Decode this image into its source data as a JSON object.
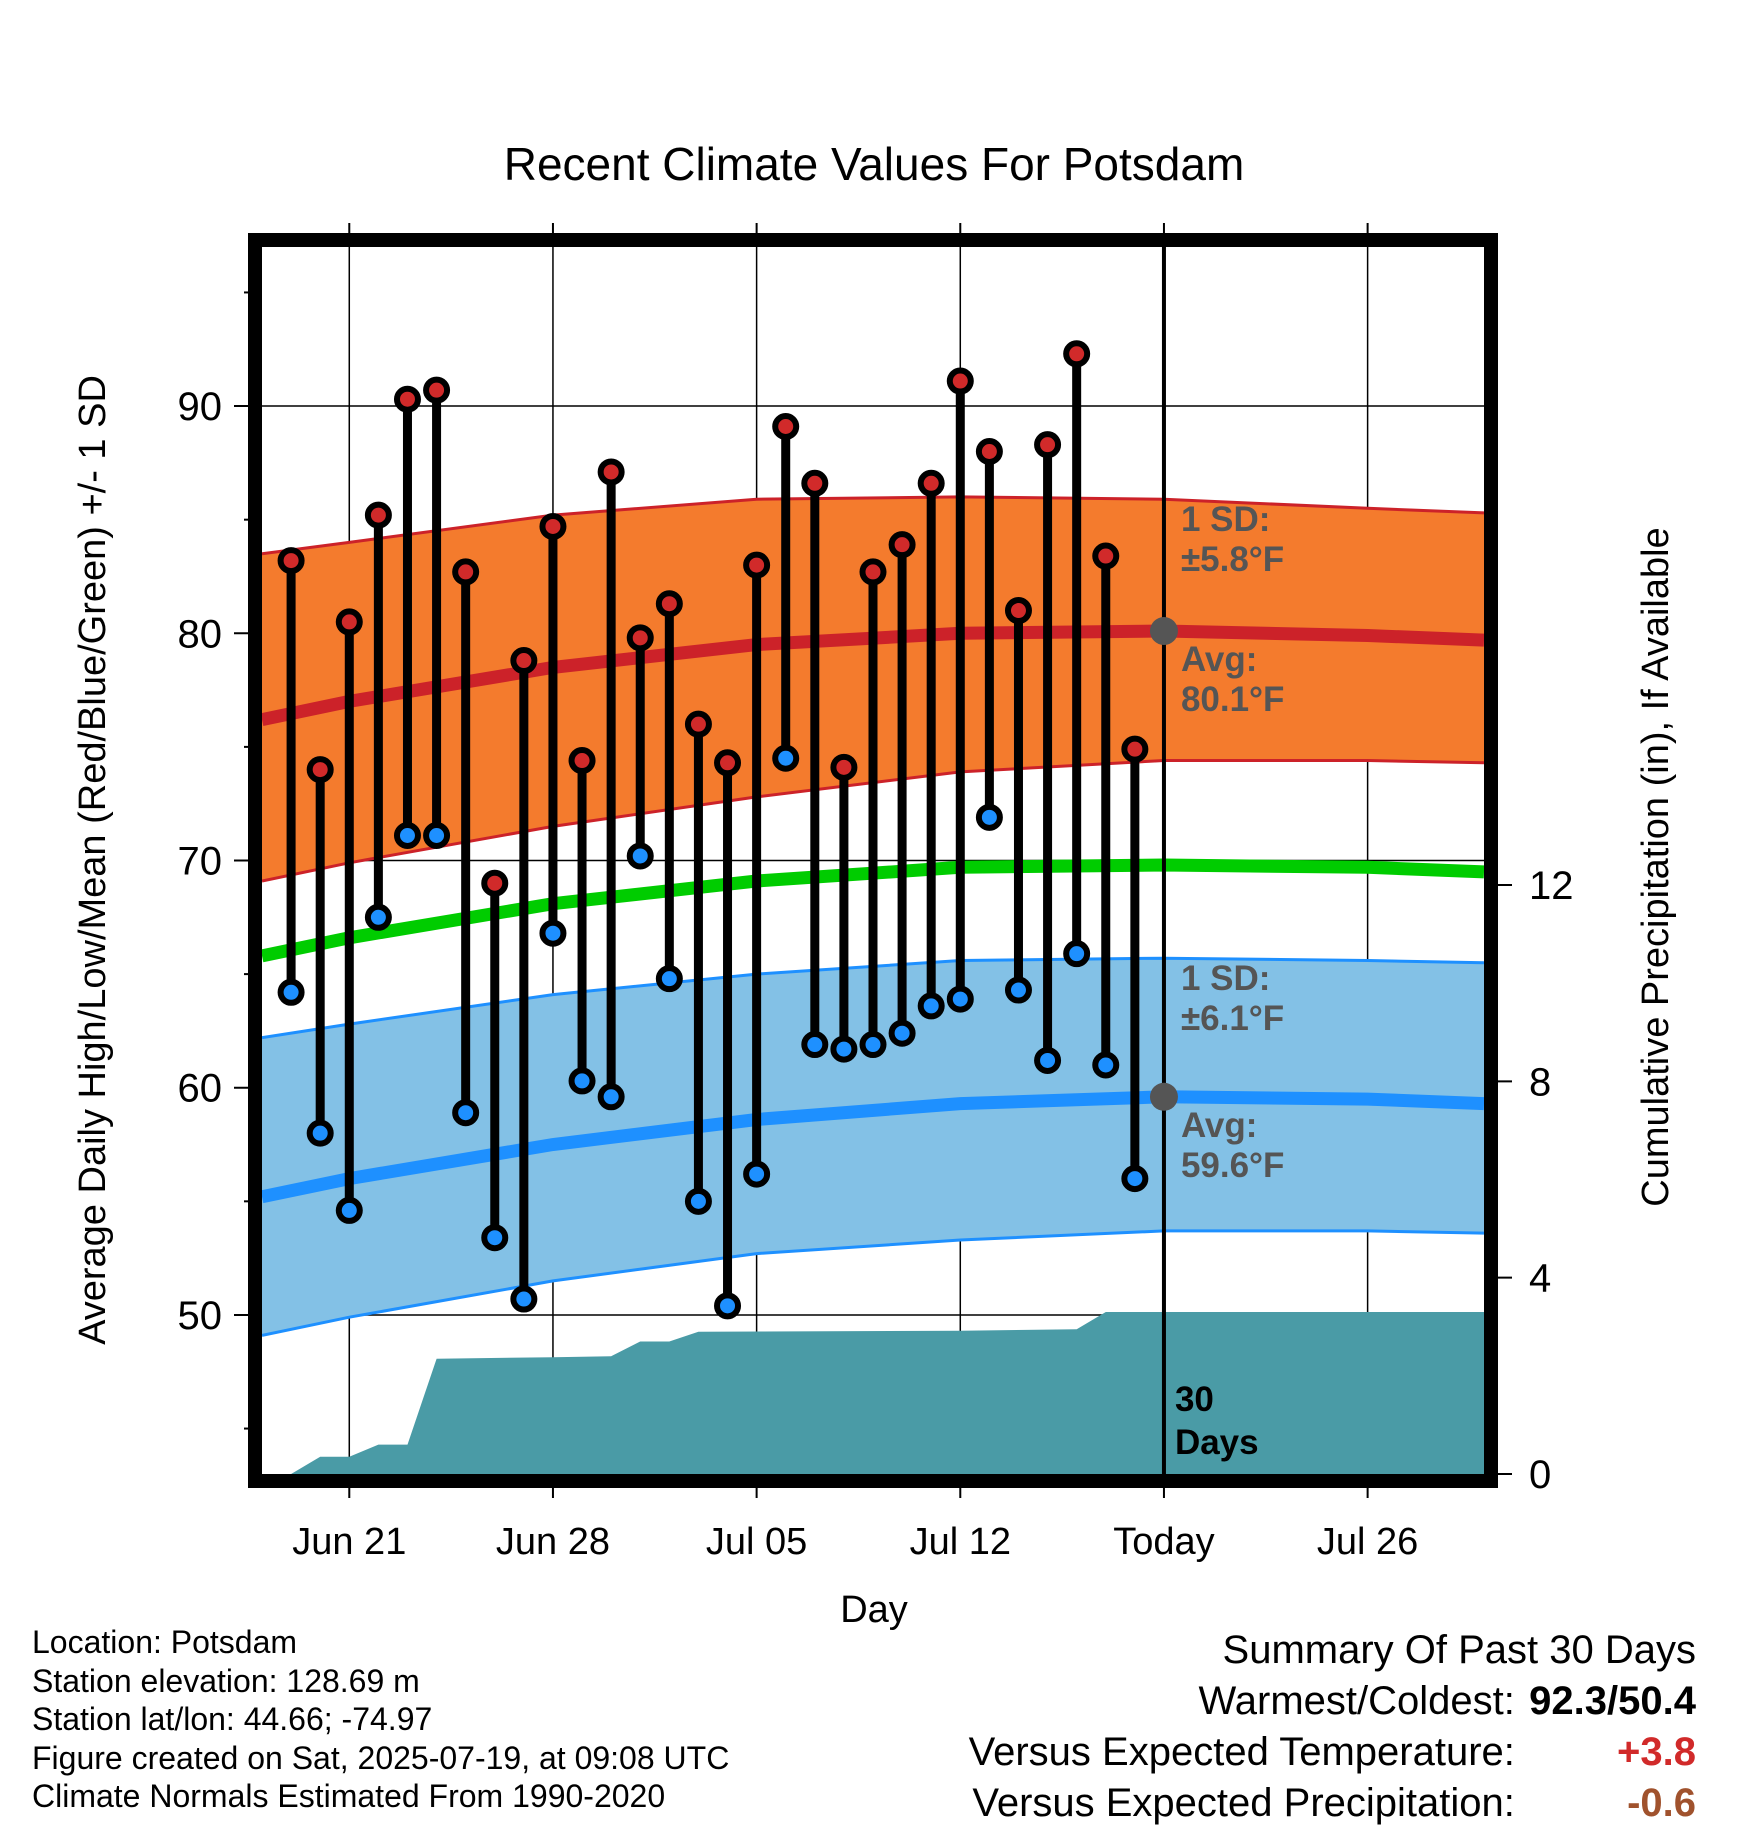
{
  "colors": {
    "high_marker": "#d12a2a",
    "low_marker": "#1e90ff",
    "high_band": "#f47b2d",
    "high_avg_line": "#cc2229",
    "low_band": "#83c1e6",
    "low_avg_line": "#1e90ff",
    "mean_line": "#00cc00",
    "precip_fill": "#4a9ba6",
    "annotation_text": "#555555",
    "today_marker": "#555555",
    "temp_anomaly": "#d12a2a",
    "precip_anomaly": "#a0522d"
  },
  "chart_data": {
    "type": "line",
    "title": "Recent Climate Values For Potsdam",
    "xlabel": "Day",
    "ylabel": "Average Daily High/Low/Mean (Red/Blue/Green) +/- 1 SD",
    "y2label": "Cumulative Precipitation (in), If Available",
    "xlim": [
      "2025-06-18",
      "2025-07-30"
    ],
    "ylim": [
      43,
      97
    ],
    "y2lim": [
      0,
      25
    ],
    "grid": true,
    "x_ticks": [
      {
        "date": "2025-06-21",
        "label": "Jun 21"
      },
      {
        "date": "2025-06-28",
        "label": "Jun 28"
      },
      {
        "date": "2025-07-05",
        "label": "Jul 05"
      },
      {
        "date": "2025-07-12",
        "label": "Jul 12"
      },
      {
        "date": "2025-07-19",
        "label": "Today"
      },
      {
        "date": "2025-07-26",
        "label": "Jul 26"
      }
    ],
    "y_ticks": [
      50,
      60,
      70,
      80,
      90
    ],
    "y2_ticks": [
      0,
      4,
      8,
      12
    ],
    "today": "2025-07-19",
    "observed": [
      {
        "date": "2025-06-19",
        "high": 83.2,
        "low": 64.2
      },
      {
        "date": "2025-06-20",
        "high": 74.0,
        "low": 58.0
      },
      {
        "date": "2025-06-21",
        "high": 80.5,
        "low": 54.6
      },
      {
        "date": "2025-06-22",
        "high": 85.2,
        "low": 67.5
      },
      {
        "date": "2025-06-23",
        "high": 90.3,
        "low": 71.1
      },
      {
        "date": "2025-06-24",
        "high": 90.7,
        "low": 71.1
      },
      {
        "date": "2025-06-25",
        "high": 82.7,
        "low": 58.9
      },
      {
        "date": "2025-06-26",
        "high": 69.0,
        "low": 53.4
      },
      {
        "date": "2025-06-27",
        "high": 78.8,
        "low": 50.7
      },
      {
        "date": "2025-06-28",
        "high": 84.7,
        "low": 66.8
      },
      {
        "date": "2025-06-29",
        "high": 74.4,
        "low": 60.3
      },
      {
        "date": "2025-06-30",
        "high": 87.1,
        "low": 59.6
      },
      {
        "date": "2025-07-01",
        "high": 79.8,
        "low": 70.2
      },
      {
        "date": "2025-07-02",
        "high": 81.3,
        "low": 64.8
      },
      {
        "date": "2025-07-03",
        "high": 76.0,
        "low": 55.0
      },
      {
        "date": "2025-07-04",
        "high": 74.3,
        "low": 50.4
      },
      {
        "date": "2025-07-05",
        "high": 83.0,
        "low": 56.2
      },
      {
        "date": "2025-07-06",
        "high": 89.1,
        "low": 74.5
      },
      {
        "date": "2025-07-07",
        "high": 86.6,
        "low": 61.9
      },
      {
        "date": "2025-07-08",
        "high": 74.1,
        "low": 61.7
      },
      {
        "date": "2025-07-09",
        "high": 82.7,
        "low": 61.9
      },
      {
        "date": "2025-07-10",
        "high": 83.9,
        "low": 62.4
      },
      {
        "date": "2025-07-11",
        "high": 86.6,
        "low": 63.6
      },
      {
        "date": "2025-07-12",
        "high": 91.1,
        "low": 63.9
      },
      {
        "date": "2025-07-13",
        "high": 88.0,
        "low": 71.9
      },
      {
        "date": "2025-07-14",
        "high": 81.0,
        "low": 64.3
      },
      {
        "date": "2025-07-15",
        "high": 88.3,
        "low": 61.2
      },
      {
        "date": "2025-07-16",
        "high": 92.3,
        "low": 65.9
      },
      {
        "date": "2025-07-17",
        "high": 83.4,
        "low": 61.0
      },
      {
        "date": "2025-07-18",
        "high": 74.9,
        "low": 56.0
      }
    ],
    "normal_high": [
      {
        "date": "2025-06-18",
        "avg": 76.2,
        "sd_low": 69.1,
        "sd_high": 83.5
      },
      {
        "date": "2025-06-21",
        "avg": 77.0,
        "sd_low": 69.9,
        "sd_high": 84.0
      },
      {
        "date": "2025-06-28",
        "avg": 78.5,
        "sd_low": 71.5,
        "sd_high": 85.2
      },
      {
        "date": "2025-07-05",
        "avg": 79.5,
        "sd_low": 72.8,
        "sd_high": 85.9
      },
      {
        "date": "2025-07-12",
        "avg": 80.0,
        "sd_low": 73.9,
        "sd_high": 86.0
      },
      {
        "date": "2025-07-19",
        "avg": 80.1,
        "sd_low": 74.4,
        "sd_high": 85.9
      },
      {
        "date": "2025-07-26",
        "avg": 79.9,
        "sd_low": 74.4,
        "sd_high": 85.5
      },
      {
        "date": "2025-07-30",
        "avg": 79.7,
        "sd_low": 74.3,
        "sd_high": 85.3
      }
    ],
    "normal_low": [
      {
        "date": "2025-06-18",
        "avg": 55.2,
        "sd_low": 49.1,
        "sd_high": 62.2
      },
      {
        "date": "2025-06-21",
        "avg": 56.0,
        "sd_low": 49.9,
        "sd_high": 62.8
      },
      {
        "date": "2025-06-28",
        "avg": 57.5,
        "sd_low": 51.5,
        "sd_high": 64.1
      },
      {
        "date": "2025-07-05",
        "avg": 58.6,
        "sd_low": 52.7,
        "sd_high": 65.0
      },
      {
        "date": "2025-07-12",
        "avg": 59.3,
        "sd_low": 53.3,
        "sd_high": 65.6
      },
      {
        "date": "2025-07-19",
        "avg": 59.6,
        "sd_low": 53.7,
        "sd_high": 65.7
      },
      {
        "date": "2025-07-26",
        "avg": 59.5,
        "sd_low": 53.7,
        "sd_high": 65.6
      },
      {
        "date": "2025-07-30",
        "avg": 59.3,
        "sd_low": 53.6,
        "sd_high": 65.5
      }
    ],
    "normal_mean": [
      {
        "date": "2025-06-18",
        "value": 65.8
      },
      {
        "date": "2025-06-21",
        "value": 66.6
      },
      {
        "date": "2025-06-28",
        "value": 68.1
      },
      {
        "date": "2025-07-05",
        "value": 69.1
      },
      {
        "date": "2025-07-12",
        "value": 69.7
      },
      {
        "date": "2025-07-19",
        "value": 69.8
      },
      {
        "date": "2025-07-26",
        "value": 69.7
      },
      {
        "date": "2025-07-30",
        "value": 69.5
      }
    ],
    "cumulative_precip": [
      {
        "date": "2025-06-19",
        "value": 0.0
      },
      {
        "date": "2025-06-20",
        "value": 0.35
      },
      {
        "date": "2025-06-21",
        "value": 0.35
      },
      {
        "date": "2025-06-22",
        "value": 0.6
      },
      {
        "date": "2025-06-23",
        "value": 0.6
      },
      {
        "date": "2025-06-24",
        "value": 2.35
      },
      {
        "date": "2025-06-28",
        "value": 2.38
      },
      {
        "date": "2025-06-30",
        "value": 2.4
      },
      {
        "date": "2025-07-01",
        "value": 2.7
      },
      {
        "date": "2025-07-02",
        "value": 2.7
      },
      {
        "date": "2025-07-03",
        "value": 2.9
      },
      {
        "date": "2025-07-12",
        "value": 2.92
      },
      {
        "date": "2025-07-16",
        "value": 2.95
      },
      {
        "date": "2025-07-17",
        "value": 3.3
      },
      {
        "date": "2025-07-30",
        "value": 3.3
      }
    ]
  },
  "annotations": {
    "high_sd_label": "1 SD:",
    "high_sd_value": "±5.8°F",
    "high_avg_label": "Avg:",
    "high_avg_value": "80.1°F",
    "low_sd_label": "1 SD:",
    "low_sd_value": "±6.1°F",
    "low_avg_label": "Avg:",
    "low_avg_value": "59.6°F",
    "days_number": "30",
    "days_label": "Days"
  },
  "meta": {
    "location": "Location: Potsdam",
    "elevation": "Station elevation: 128.69 m",
    "latlon": "Station lat/lon: 44.66; -74.97",
    "created": "Figure created on Sat, 2025-07-19, at 09:08 UTC",
    "normals": "Climate Normals Estimated From 1990-2020"
  },
  "summary": {
    "title": "Summary Of Past 30 Days",
    "warm_cold_label": "Warmest/Coldest:",
    "warm_value": "92.3",
    "separator": "/",
    "cold_value": "50.4",
    "temp_label": "Versus Expected Temperature:",
    "temp_value": "+3.8",
    "precip_label": "Versus Expected Precipitation:",
    "precip_value": "-0.6"
  }
}
